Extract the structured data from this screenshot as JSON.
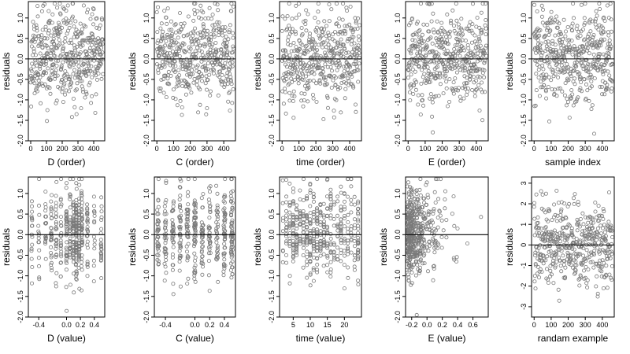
{
  "figure": {
    "ylabel": "residuals",
    "point_color": "#7a7a7a",
    "line_color": "#000000"
  },
  "chart_data": [
    {
      "type": "scatter",
      "xlabel": "D (order)",
      "ylabel": "residuals",
      "xlim": [
        -15,
        470
      ],
      "ylim": [
        -2.0,
        1.4
      ],
      "xticks": [
        0,
        100,
        200,
        300,
        400
      ],
      "xticklabels": [
        "0",
        "100",
        "200",
        "300",
        "400"
      ],
      "yticks": [
        -2.0,
        -1.5,
        -1.0,
        -0.5,
        0.0,
        0.5,
        1.0
      ],
      "yticklabels": [
        "-2.0",
        "-1.5",
        "-1.0",
        "-0.5",
        "0.0",
        "0.5",
        "1.0"
      ],
      "ref_line": 0,
      "gen": {
        "kind": "order",
        "seed": 11,
        "n": 460,
        "sd": 0.55
      }
    },
    {
      "type": "scatter",
      "xlabel": "C (order)",
      "ylabel": "residuals",
      "xlim": [
        -15,
        470
      ],
      "ylim": [
        -2.0,
        1.4
      ],
      "xticks": [
        0,
        100,
        200,
        300,
        400
      ],
      "xticklabels": [
        "0",
        "100",
        "200",
        "300",
        "400"
      ],
      "yticks": [
        -2.0,
        -1.5,
        -1.0,
        -0.5,
        0.0,
        0.5,
        1.0
      ],
      "yticklabels": [
        "-2.0",
        "-1.5",
        "-1.0",
        "-0.5",
        "0.0",
        "0.5",
        "1.0"
      ],
      "ref_line": 0,
      "gen": {
        "kind": "order",
        "seed": 23,
        "n": 460,
        "sd": 0.55
      }
    },
    {
      "type": "scatter",
      "xlabel": "time (order)",
      "ylabel": "residuals",
      "xlim": [
        -15,
        470
      ],
      "ylim": [
        -2.0,
        1.4
      ],
      "xticks": [
        0,
        100,
        200,
        300,
        400
      ],
      "xticklabels": [
        "0",
        "100",
        "200",
        "300",
        "400"
      ],
      "yticks": [
        -2.0,
        -1.5,
        -1.0,
        -0.5,
        0.0,
        0.5,
        1.0
      ],
      "yticklabels": [
        "-2.0",
        "-1.5",
        "-1.0",
        "-0.5",
        "0.0",
        "0.5",
        "1.0"
      ],
      "ref_line": 0,
      "gen": {
        "kind": "order",
        "seed": 37,
        "n": 460,
        "sd": 0.55
      }
    },
    {
      "type": "scatter",
      "xlabel": "E (order)",
      "ylabel": "residuals",
      "xlim": [
        -15,
        470
      ],
      "ylim": [
        -2.0,
        1.4
      ],
      "xticks": [
        0,
        100,
        200,
        300,
        400
      ],
      "xticklabels": [
        "0",
        "100",
        "200",
        "300",
        "400"
      ],
      "yticks": [
        -2.0,
        -1.5,
        -1.0,
        -0.5,
        0.0,
        0.5,
        1.0
      ],
      "yticklabels": [
        "-2.0",
        "-1.5",
        "-1.0",
        "-0.5",
        "0.0",
        "0.5",
        "1.0"
      ],
      "ref_line": 0,
      "gen": {
        "kind": "order",
        "seed": 41,
        "n": 460,
        "sd": 0.55
      }
    },
    {
      "type": "scatter",
      "xlabel": "sample index",
      "ylabel": "residuals",
      "xlim": [
        -15,
        470
      ],
      "ylim": [
        -2.0,
        1.4
      ],
      "xticks": [
        0,
        100,
        200,
        300,
        400
      ],
      "xticklabels": [
        "0",
        "100",
        "200",
        "300",
        "400"
      ],
      "yticks": [
        -2.0,
        -1.5,
        -1.0,
        -0.5,
        0.0,
        0.5,
        1.0
      ],
      "yticklabels": [
        "-2.0",
        "-1.5",
        "-1.0",
        "-0.5",
        "0.0",
        "0.5",
        "1.0"
      ],
      "ref_line": 0,
      "gen": {
        "kind": "order",
        "seed": 53,
        "n": 460,
        "sd": 0.55
      }
    },
    {
      "type": "scatter",
      "xlabel": "D (value)",
      "ylabel": "residuals",
      "xlim": [
        -0.55,
        0.55
      ],
      "ylim": [
        -2.0,
        1.4
      ],
      "xticks": [
        -0.4,
        0.0,
        0.2,
        0.4
      ],
      "xticklabels": [
        "-0.4",
        "0.0",
        "0.2",
        "0.4"
      ],
      "yticks": [
        -2.0,
        -1.5,
        -1.0,
        -0.5,
        0.0,
        0.5,
        1.0
      ],
      "yticklabels": [
        "-2.0",
        "-1.5",
        "-1.0",
        "-0.5",
        "0.0",
        "0.5",
        "1.0"
      ],
      "ref_line": 0,
      "gen": {
        "kind": "levels",
        "seed": 67,
        "n": 460,
        "sd": 0.52,
        "levels": [
          -0.5,
          -0.4,
          -0.3,
          -0.22,
          -0.15,
          -0.08,
          0.0,
          0.05,
          0.1,
          0.14,
          0.18,
          0.22,
          0.3,
          0.4,
          0.5
        ],
        "weights": [
          3,
          4,
          4,
          5,
          5,
          6,
          7,
          6,
          8,
          9,
          7,
          6,
          4,
          3,
          3
        ],
        "jitter": 0.006
      }
    },
    {
      "type": "scatter",
      "xlabel": "C (value)",
      "ylabel": "residuals",
      "xlim": [
        -0.55,
        0.55
      ],
      "ylim": [
        -2.0,
        1.4
      ],
      "xticks": [
        -0.4,
        0.0,
        0.2,
        0.4
      ],
      "xticklabels": [
        "-0.4",
        "0.0",
        "0.2",
        "0.4"
      ],
      "yticks": [
        -2.0,
        -1.5,
        -1.0,
        -0.5,
        0.0,
        0.5,
        1.0
      ],
      "yticklabels": [
        "-2.0",
        "-1.5",
        "-1.0",
        "-0.5",
        "0.0",
        "0.5",
        "1.0"
      ],
      "ref_line": 0,
      "gen": {
        "kind": "levels",
        "seed": 79,
        "n": 460,
        "sd": 0.55,
        "levels": [
          -0.5,
          -0.4,
          -0.3,
          -0.2,
          -0.1,
          0.0,
          0.1,
          0.2,
          0.3,
          0.4,
          0.5
        ],
        "weights": [
          5,
          5,
          5,
          5,
          5,
          9,
          5,
          6,
          5,
          7,
          8
        ],
        "jitter": 0.012
      }
    },
    {
      "type": "scatter",
      "xlabel": "time (value)",
      "ylabel": "residuals",
      "xlim": [
        1,
        25
      ],
      "ylim": [
        -2.0,
        1.4
      ],
      "xticks": [
        5,
        10,
        15,
        20
      ],
      "xticklabels": [
        "5",
        "10",
        "15",
        "20"
      ],
      "yticks": [
        -2.0,
        -1.5,
        -1.0,
        -0.5,
        0.0,
        0.5,
        1.0
      ],
      "yticklabels": [
        "-2.0",
        "-1.5",
        "-1.0",
        "-0.5",
        "0.0",
        "0.5",
        "1.0"
      ],
      "ref_line": 0,
      "gen": {
        "kind": "levels",
        "seed": 97,
        "n": 460,
        "sd": 0.55,
        "levels": [
          2,
          3,
          4,
          5,
          6,
          7,
          8,
          9,
          10,
          11,
          12,
          13,
          14,
          15,
          16,
          17,
          18,
          19,
          20,
          21,
          22,
          23,
          24
        ],
        "weights": [
          3,
          4,
          5,
          6,
          6,
          5,
          6,
          5,
          5,
          6,
          9,
          6,
          5,
          5,
          6,
          5,
          5,
          6,
          5,
          5,
          5,
          4,
          7
        ],
        "jitter": 0.05
      }
    },
    {
      "type": "scatter",
      "xlabel": "E (value)",
      "ylabel": "residuals",
      "xlim": [
        -0.28,
        0.8
      ],
      "ylim": [
        -2.0,
        1.4
      ],
      "xticks": [
        -0.2,
        0.0,
        0.2,
        0.4,
        0.6
      ],
      "xticklabels": [
        "-0.2",
        "0.0",
        "0.2",
        "0.4",
        "0.6"
      ],
      "yticks": [
        -2.0,
        -1.5,
        -1.0,
        -0.5,
        0.0,
        0.5,
        1.0
      ],
      "yticklabels": [
        "-2.0",
        "-1.5",
        "-1.0",
        "-0.5",
        "0.0",
        "0.5",
        "1.0"
      ],
      "ref_line": 0,
      "gen": {
        "kind": "skew",
        "seed": 113,
        "n": 460,
        "sd": 0.55,
        "min": -0.26,
        "scale": 0.14,
        "max": 0.76
      }
    },
    {
      "type": "scatter",
      "xlabel": "randam example",
      "ylabel": "residuals",
      "xlim": [
        -15,
        470
      ],
      "ylim": [
        -3.5,
        3.3
      ],
      "xticks": [
        0,
        100,
        200,
        300,
        400
      ],
      "xticklabels": [
        "0",
        "100",
        "200",
        "300",
        "400"
      ],
      "yticks": [
        -3,
        -2,
        -1,
        0,
        1,
        2,
        3
      ],
      "yticklabels": [
        "-3",
        "-2",
        "-1",
        "0",
        "1",
        "2",
        "3"
      ],
      "ref_line": 0,
      "gen": {
        "kind": "order",
        "seed": 131,
        "n": 460,
        "sd": 1.0
      }
    }
  ]
}
